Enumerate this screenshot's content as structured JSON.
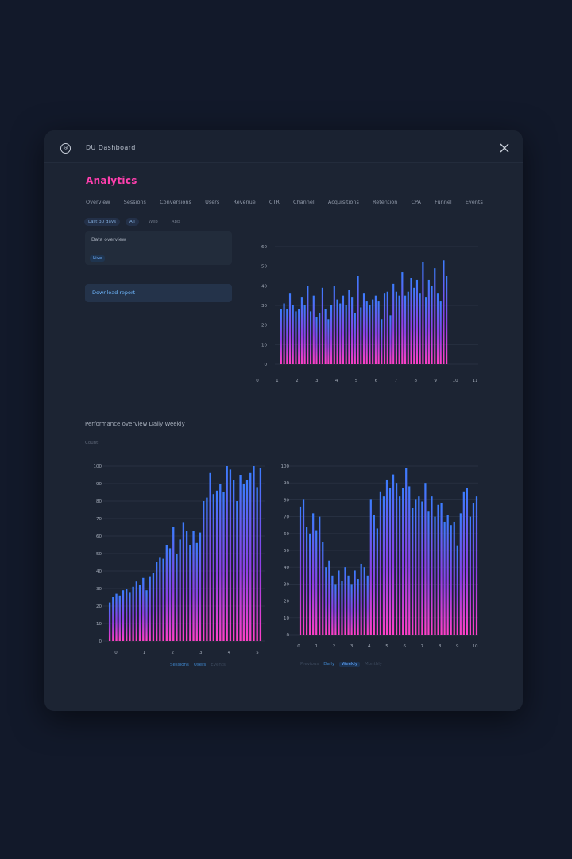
{
  "window": {
    "title": "DU Dashboard",
    "app_icon_label": "@"
  },
  "page": {
    "title": "Analytics"
  },
  "nav": {
    "tabs": [
      "Overview",
      "Sessions",
      "Conversions",
      "Users",
      "Revenue",
      "CTR",
      "Channel",
      "Acquisitions",
      "Retention",
      "CPA",
      "Funnel",
      "Events"
    ]
  },
  "filters": {
    "chips": [
      "Last 30 days",
      "All",
      "Web",
      "App"
    ]
  },
  "info_card": {
    "label": "Data overview",
    "tag": "Live"
  },
  "action_row": {
    "label": "Download report"
  },
  "section": {
    "title": "Performance overview  Daily  Weekly",
    "subtitle": "Count"
  },
  "legend_left": [
    "Sessions",
    "Users",
    "Events"
  ],
  "legend_right": [
    "Previous",
    "Daily",
    "Weekly",
    "Monthly"
  ],
  "colors": {
    "bar_top": "#3b7dff",
    "bar_mid": "#8d3fe6",
    "bar_bottom": "#ff3fc8",
    "title_accent": "#ff3fae"
  },
  "chart_data": [
    {
      "type": "bar",
      "name": "top-chart",
      "ylim": [
        0,
        60
      ],
      "yticks": [
        "0",
        "10",
        "20",
        "30",
        "40",
        "50",
        "60"
      ],
      "xticks": [
        "0",
        "1",
        "2",
        "3",
        "4",
        "5",
        "6",
        "7",
        "8",
        "9",
        "10",
        "11"
      ],
      "values": [
        28,
        31,
        28,
        36,
        30,
        27,
        28,
        34,
        30,
        40,
        27,
        35,
        24,
        26,
        39,
        28,
        23,
        30,
        40,
        33,
        31,
        35,
        30,
        38,
        34,
        26,
        45,
        29,
        36,
        32,
        30,
        33,
        35,
        32,
        23,
        36,
        37,
        25,
        41,
        37,
        35,
        47,
        35,
        37,
        44,
        39,
        43,
        36,
        52,
        34,
        43,
        40,
        49,
        36,
        32,
        53,
        45
      ],
      "grid": true
    },
    {
      "type": "bar",
      "name": "bottom-left-chart",
      "ylim": [
        0,
        100
      ],
      "yticks": [
        "0",
        "10",
        "20",
        "30",
        "40",
        "50",
        "60",
        "70",
        "80",
        "90",
        "100"
      ],
      "xticks": [
        "0",
        "1",
        "2",
        "3",
        "4",
        "5"
      ],
      "values": [
        22,
        25,
        27,
        26,
        29,
        30,
        28,
        31,
        34,
        32,
        36,
        29,
        37,
        39,
        45,
        48,
        47,
        55,
        53,
        65,
        50,
        58,
        68,
        63,
        55,
        63,
        56,
        62,
        80,
        82,
        96,
        84,
        86,
        90,
        85,
        100,
        98,
        92,
        80,
        95,
        90,
        92,
        96,
        100,
        88,
        99
      ],
      "grid": true
    },
    {
      "type": "bar",
      "name": "bottom-right-chart",
      "ylim": [
        0,
        100
      ],
      "yticks": [
        "0",
        "10",
        "20",
        "30",
        "40",
        "50",
        "60",
        "70",
        "80",
        "90",
        "100"
      ],
      "xticks": [
        "0",
        "1",
        "2",
        "3",
        "4",
        "5",
        "6",
        "7",
        "8",
        "9",
        "10"
      ],
      "values": [
        76,
        80,
        64,
        60,
        72,
        62,
        70,
        55,
        40,
        44,
        35,
        30,
        38,
        32,
        40,
        35,
        30,
        38,
        33,
        42,
        40,
        35,
        80,
        71,
        63,
        85,
        82,
        92,
        87,
        95,
        90,
        82,
        87,
        99,
        88,
        75,
        80,
        82,
        79,
        90,
        73,
        82,
        70,
        77,
        78,
        67,
        71,
        65,
        67,
        53,
        72,
        85,
        87,
        70,
        78,
        82
      ],
      "grid": true
    }
  ]
}
